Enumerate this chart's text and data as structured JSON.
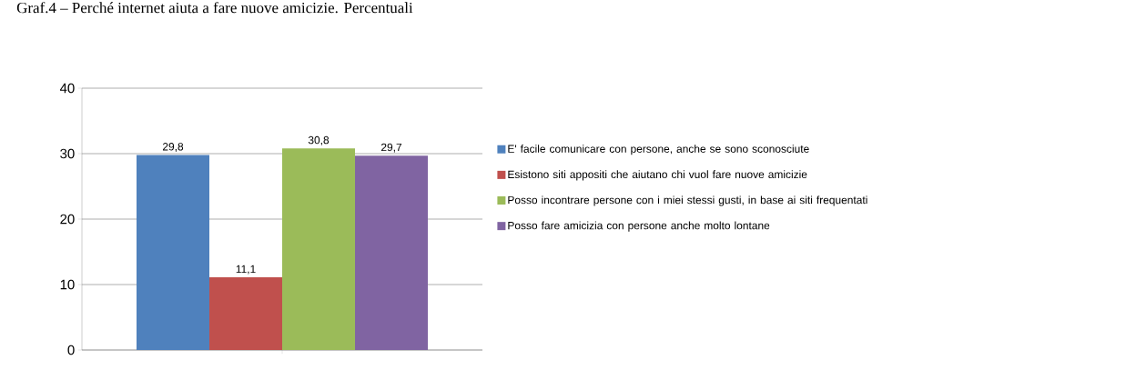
{
  "chart_data": {
    "type": "bar",
    "title": "Graf.4 – Perché internet aiuta a fare nuove amicizie. Percentuali",
    "categories": [
      null
    ],
    "series": [
      {
        "name": "E' facile comunicare con persone, anche se sono sconosciute",
        "color": "#4f81bd",
        "values": [
          29.8
        ],
        "value_labels": [
          "29,8"
        ]
      },
      {
        "name": "Esistono siti appositi che aiutano chi vuol fare nuove amicizie",
        "color": "#c0504d",
        "values": [
          11.1
        ],
        "value_labels": [
          "11,1"
        ]
      },
      {
        "name": "Posso incontrare persone con i miei stessi gusti, in base ai siti frequentati",
        "color": "#9bbb59",
        "values": [
          30.8
        ],
        "value_labels": [
          "30,8"
        ]
      },
      {
        "name": "Posso fare amicizia con persone anche molto lontane",
        "color": "#8064a2",
        "values": [
          29.7
        ],
        "value_labels": [
          "29,7"
        ]
      }
    ],
    "ylim": [
      0,
      40
    ],
    "yticks": [
      0,
      10,
      20,
      30,
      40
    ],
    "grid": "y",
    "legend": "right"
  }
}
